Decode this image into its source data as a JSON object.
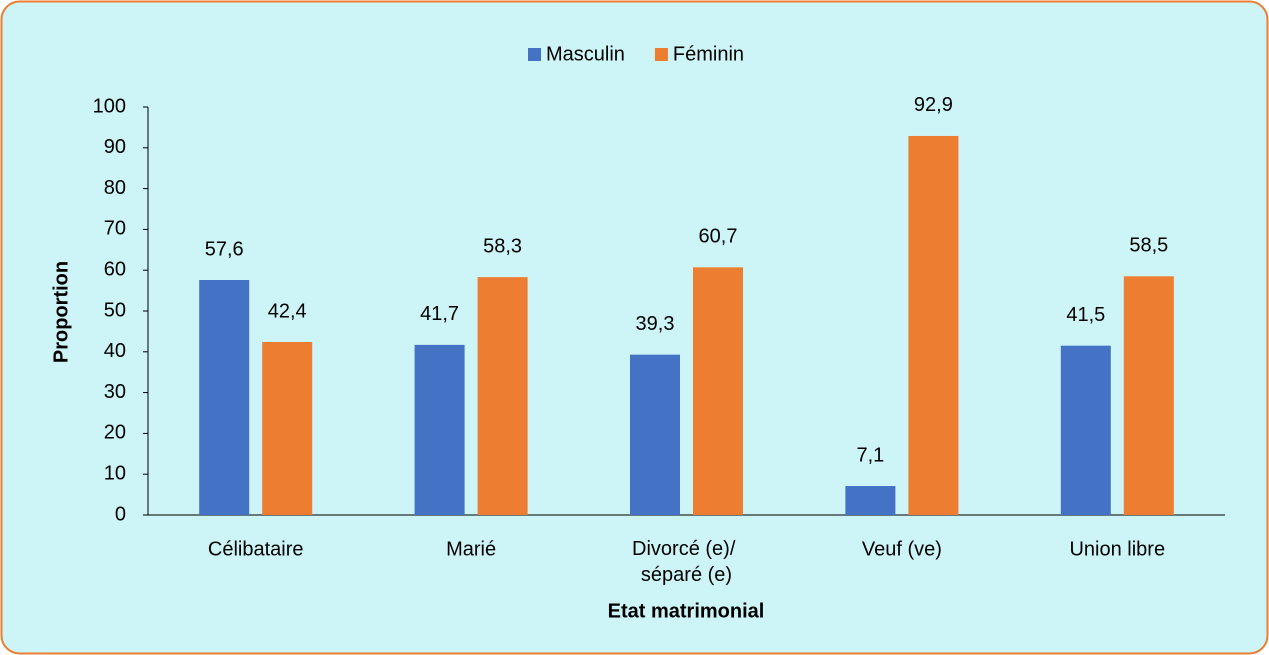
{
  "chart_data": {
    "type": "bar",
    "categories": [
      "Célibataire",
      "Marié",
      "Divorcé (e)/ séparé (e)",
      "Veuf (ve)",
      "Union libre"
    ],
    "series": [
      {
        "name": "Masculin",
        "color": "#4472c4",
        "values": [
          57.6,
          41.7,
          39.3,
          7.1,
          41.5
        ],
        "value_labels": [
          "57,6",
          "41,7",
          "39,3",
          "7,1",
          "41,5"
        ]
      },
      {
        "name": "Féminin",
        "color": "#ed7d31",
        "values": [
          42.4,
          58.3,
          60.7,
          92.9,
          58.5
        ],
        "value_labels": [
          "42,4",
          "58,3",
          "60,7",
          "92,9",
          "58,5"
        ]
      }
    ],
    "ylim": [
      0,
      100
    ],
    "yticks": [
      0,
      10,
      20,
      30,
      40,
      50,
      60,
      70,
      80,
      90,
      100
    ],
    "x_label": "Etat matrimonial",
    "y_label": "Proportion",
    "legend": "top"
  }
}
